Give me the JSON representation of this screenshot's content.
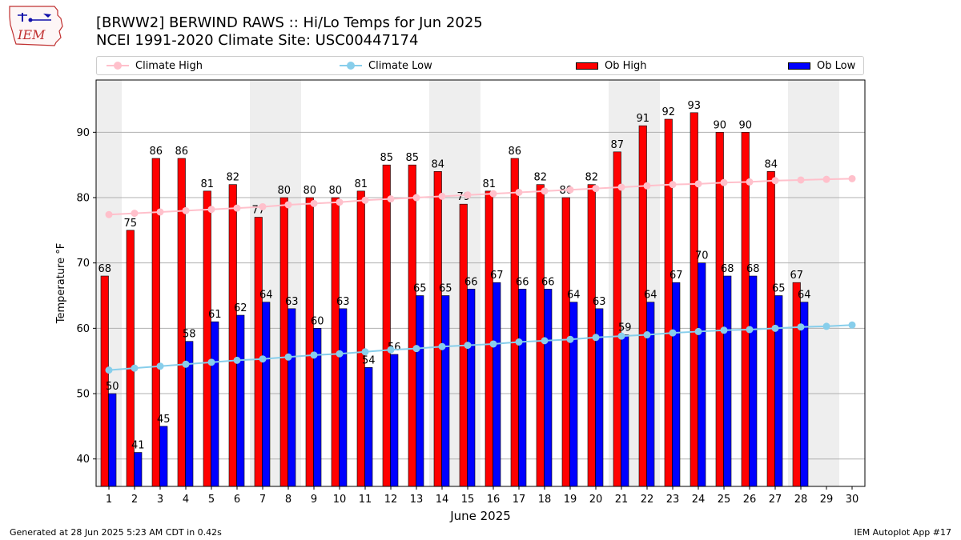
{
  "header": {
    "title_line1": "[BRWW2] BERWIND RAWS :: Hi/Lo Temps for Jun 2025",
    "title_line2": "NCEI 1991-2020 Climate Site: USC00447174"
  },
  "logo": {
    "text": "IEM"
  },
  "legend": {
    "climate_high": "Climate High",
    "climate_low": "Climate Low",
    "ob_high": "Ob High",
    "ob_low": "Ob Low"
  },
  "footer": {
    "left": "Generated at 28 Jun 2025 5:23 AM CDT in 0.42s",
    "right": "IEM Autoplot App #17"
  },
  "colors": {
    "ob_high": "#ff0000",
    "ob_low": "#0000ff",
    "climate_high": "#ffc0cb",
    "climate_low": "#87ceeb",
    "weekend_shade": "#eeeeee",
    "grid": "#b0b0b0"
  },
  "chart_data": {
    "type": "bar",
    "xlabel": "June 2025",
    "ylabel": "Temperature °F",
    "ylim": [
      35.8,
      98
    ],
    "yticks": [
      40,
      50,
      60,
      70,
      80,
      90
    ],
    "grid": true,
    "legend_position": "top",
    "categories": [
      "1",
      "2",
      "3",
      "4",
      "5",
      "6",
      "7",
      "8",
      "9",
      "10",
      "11",
      "12",
      "13",
      "14",
      "15",
      "16",
      "17",
      "18",
      "19",
      "20",
      "21",
      "22",
      "23",
      "24",
      "25",
      "26",
      "27",
      "28",
      "29",
      "30"
    ],
    "shaded_days": [
      1,
      7,
      8,
      14,
      15,
      21,
      22,
      28,
      29
    ],
    "series": [
      {
        "name": "Ob High",
        "type": "bar",
        "values": [
          68,
          75,
          86,
          86,
          81,
          82,
          77,
          80,
          80,
          80,
          81,
          85,
          85,
          84,
          79,
          81,
          86,
          82,
          80,
          82,
          87,
          91,
          92,
          93,
          90,
          90,
          84,
          67,
          null,
          null
        ]
      },
      {
        "name": "Ob Low",
        "type": "bar",
        "values": [
          50,
          41,
          45,
          58,
          61,
          62,
          64,
          63,
          60,
          63,
          54,
          56,
          65,
          65,
          66,
          67,
          66,
          66,
          64,
          63,
          59,
          64,
          67,
          70,
          68,
          68,
          65,
          64,
          null,
          null
        ]
      },
      {
        "name": "Climate High",
        "type": "line",
        "values": [
          77.4,
          77.6,
          77.8,
          78.0,
          78.2,
          78.4,
          78.6,
          78.9,
          79.1,
          79.3,
          79.6,
          79.8,
          80.0,
          80.2,
          80.4,
          80.6,
          80.8,
          81.0,
          81.2,
          81.4,
          81.6,
          81.8,
          82.0,
          82.1,
          82.3,
          82.4,
          82.6,
          82.7,
          82.8,
          82.9
        ]
      },
      {
        "name": "Climate Low",
        "type": "line",
        "values": [
          53.6,
          53.9,
          54.2,
          54.5,
          54.8,
          55.1,
          55.3,
          55.6,
          55.9,
          56.1,
          56.4,
          56.7,
          56.9,
          57.2,
          57.4,
          57.6,
          57.9,
          58.1,
          58.3,
          58.6,
          58.8,
          59.0,
          59.3,
          59.5,
          59.7,
          59.8,
          60.0,
          60.2,
          60.3,
          60.5
        ]
      }
    ]
  }
}
